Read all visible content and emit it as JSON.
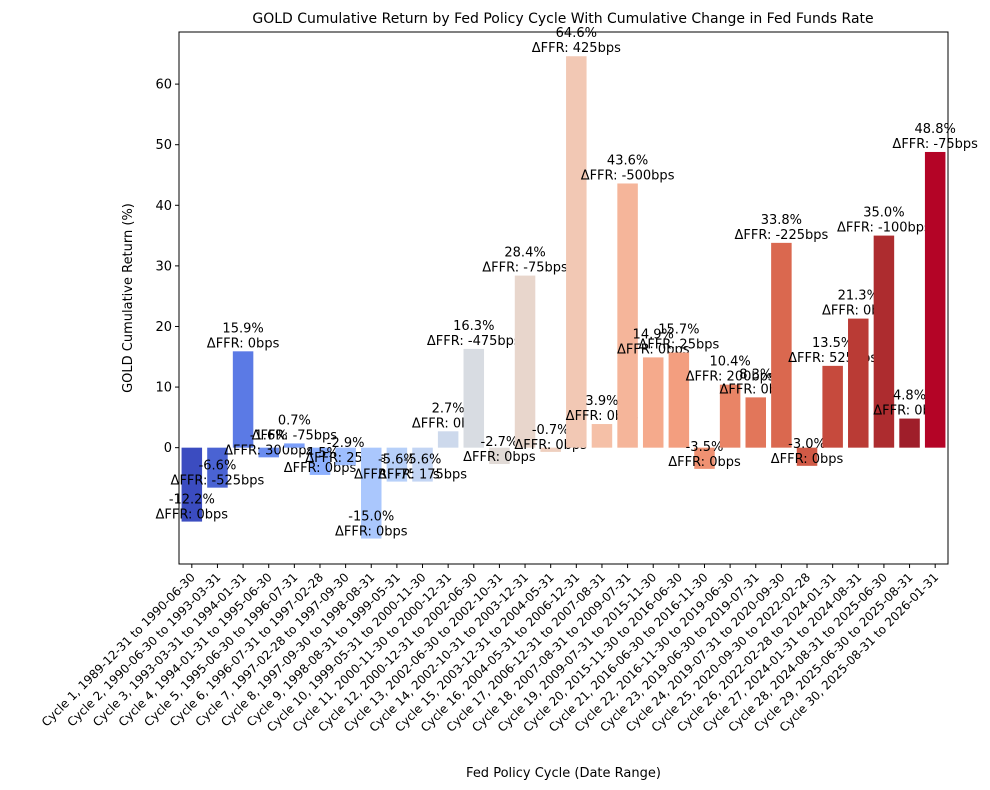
{
  "chart_data": {
    "type": "bar",
    "title": "GOLD Cumulative Return by Fed Policy Cycle With Cumulative Change in Fed Funds Rate",
    "xlabel": "Fed Policy Cycle (Date Range)",
    "ylabel": "GOLD Cumulative Return (%)",
    "ylim": [
      -19.2,
      68.6
    ],
    "yticks": [
      0,
      10,
      20,
      30,
      40,
      50,
      60
    ],
    "grid": false,
    "categories": [
      "Cycle 1, 1989-12-31 to 1990-06-30",
      "Cycle 2, 1990-06-30 to 1993-03-31",
      "Cycle 3, 1993-03-31 to 1994-01-31",
      "Cycle 4, 1994-01-31 to 1995-06-30",
      "Cycle 5, 1995-06-30 to 1996-07-31",
      "Cycle 6, 1996-07-31 to 1997-02-28",
      "Cycle 7, 1997-02-28 to 1997-09-30",
      "Cycle 8, 1997-09-30 to 1998-08-31",
      "Cycle 9, 1998-08-31 to 1999-05-31",
      "Cycle 10, 1999-05-31 to 2000-11-30",
      "Cycle 11, 2000-11-30 to 2000-12-31",
      "Cycle 12, 2000-12-31 to 2002-06-30",
      "Cycle 13, 2002-06-30 to 2002-10-31",
      "Cycle 14, 2002-10-31 to 2003-12-31",
      "Cycle 15, 2003-12-31 to 2004-05-31",
      "Cycle 16, 2004-05-31 to 2006-12-31",
      "Cycle 17, 2006-12-31 to 2007-08-31",
      "Cycle 18, 2007-08-31 to 2009-07-31",
      "Cycle 19, 2009-07-31 to 2015-11-30",
      "Cycle 20, 2015-11-30 to 2016-06-30",
      "Cycle 21, 2016-06-30 to 2016-11-30",
      "Cycle 22, 2016-11-30 to 2019-06-30",
      "Cycle 23, 2019-06-30 to 2019-07-31",
      "Cycle 24, 2019-07-31 to 2020-09-30",
      "Cycle 25, 2020-09-30 to 2022-02-28",
      "Cycle 26, 2022-02-28 to 2024-01-31",
      "Cycle 27, 2024-01-31 to 2024-08-31",
      "Cycle 28, 2024-08-31 to 2025-06-30",
      "Cycle 29, 2025-06-30 to 2025-08-31",
      "Cycle 30, 2025-08-31 to 2026-01-31"
    ],
    "values": [
      -12.2,
      -6.6,
      15.9,
      -1.6,
      0.7,
      -4.5,
      -2.9,
      -15.0,
      -5.6,
      -5.6,
      2.7,
      16.3,
      -2.7,
      28.4,
      -0.7,
      64.6,
      3.9,
      43.6,
      14.9,
      15.7,
      -3.5,
      10.4,
      8.3,
      33.8,
      -3.0,
      13.5,
      21.3,
      35.0,
      4.8,
      48.8
    ],
    "value_labels": [
      "-12.2%",
      "-6.6%",
      "15.9%",
      "-1.6%",
      "0.7%",
      "-4.5%",
      "-2.9%",
      "-15.0%",
      "-5.6%",
      "-5.6%",
      "2.7%",
      "16.3%",
      "-2.7%",
      "28.4%",
      "-0.7%",
      "64.6%",
      "3.9%",
      "43.6%",
      "14.9%",
      "15.7%",
      "-3.5%",
      "10.4%",
      "8.3%",
      "33.8%",
      "-3.0%",
      "13.5%",
      "21.3%",
      "35.0%",
      "4.8%",
      "48.8%"
    ],
    "ffr_labels": [
      "ΔFFR: 0bps",
      "ΔFFR: -525bps",
      "ΔFFR: 0bps",
      "ΔFFR: 300bps",
      "ΔFFR: -75bps",
      "ΔFFR: 0bps",
      "ΔFFR: 25bps",
      "ΔFFR: 0bps",
      "ΔFFR: -75bps",
      "ΔFFR: 175bps",
      "ΔFFR: 0bps",
      "ΔFFR: -475bps",
      "ΔFFR: 0bps",
      "ΔFFR: -75bps",
      "ΔFFR: 0bps",
      "ΔFFR: 425bps",
      "ΔFFR: 0bps",
      "ΔFFR: -500bps",
      "ΔFFR: 0bps",
      "ΔFFR: 25bps",
      "ΔFFR: 0bps",
      "ΔFFR: 200bps",
      "ΔFFR: 0bps",
      "ΔFFR: -225bps",
      "ΔFFR: 0bps",
      "ΔFFR: 525bps",
      "ΔFFR: 0bps",
      "ΔFFR: -100bps",
      "ΔFFR: 0bps",
      "ΔFFR: -75bps"
    ],
    "colors": [
      "#3b4cc0",
      "#4a63d3",
      "#5b7ae5",
      "#6b8df0",
      "#7b9ff9",
      "#8db0fe",
      "#9ebeff",
      "#aac7fd",
      "#b7d0f9",
      "#c3d5f4",
      "#cdd9ec",
      "#d8dce2",
      "#e1dad6",
      "#e8d6cc",
      "#eecfbf",
      "#f2c8b4",
      "#f5c0a7",
      "#f5b59a",
      "#f5aa8c",
      "#f39e7f",
      "#ef9172",
      "#e98466",
      "#e2765a",
      "#da684f",
      "#d15a46",
      "#c64a3d",
      "#ba3b35",
      "#ad2c2f",
      "#9f1e2a",
      "#b40426"
    ]
  }
}
